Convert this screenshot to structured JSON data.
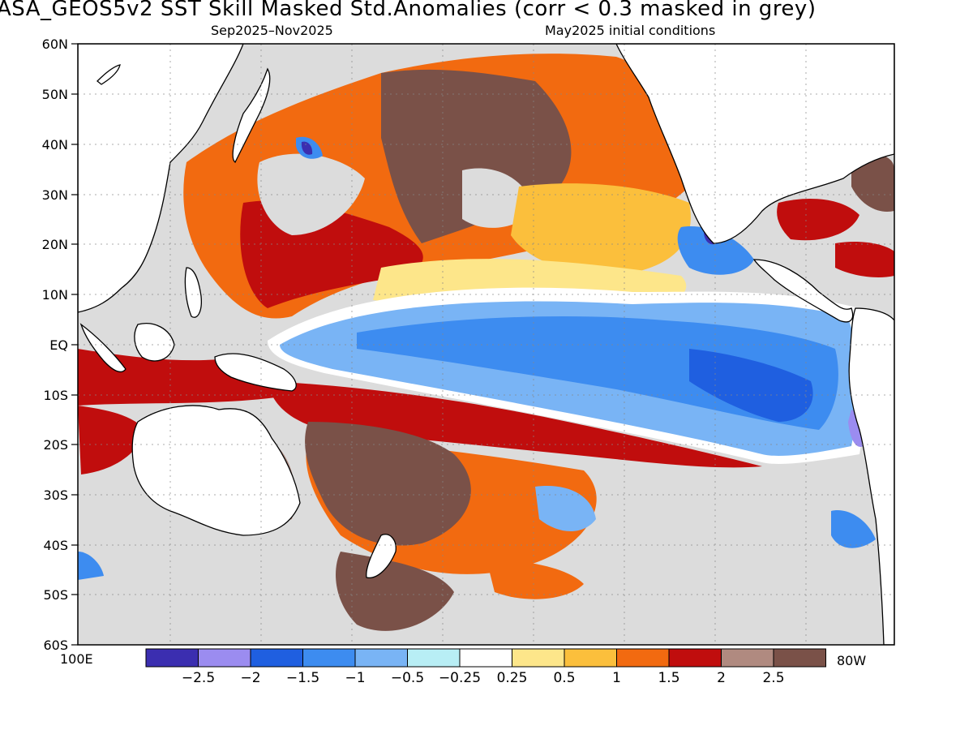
{
  "header": {
    "title": "ASA_GEOS5v2  SST Skill Masked Std.Anomalies (corr < 0.3 masked in grey)",
    "period": "Sep2025–Nov2025",
    "init": "May2025 initial conditions"
  },
  "map": {
    "lat_labels": [
      "60N",
      "50N",
      "40N",
      "30N",
      "20N",
      "10N",
      "EQ",
      "10S",
      "20S",
      "30S",
      "40S",
      "50S",
      "60S"
    ],
    "lon_left_label": "100E",
    "lon_right_label": "80W",
    "mask_color": "#dcdcdc",
    "land_color": "#ffffff"
  },
  "colorbar": {
    "colors": [
      "#3b2eb0",
      "#9b8cf0",
      "#1f5fe0",
      "#3d8cf0",
      "#79b4f5",
      "#b8eef5",
      "#ffffff",
      "#fde68a",
      "#fbbf3c",
      "#f26a10",
      "#c00d0d",
      "#b08a80",
      "#7a5148"
    ],
    "labels": [
      "−2.5",
      "−2",
      "−1.5",
      "−1",
      "−0.5",
      "−0.25",
      "0.25",
      "0.5",
      "1",
      "1.5",
      "2",
      "2.5"
    ]
  }
}
